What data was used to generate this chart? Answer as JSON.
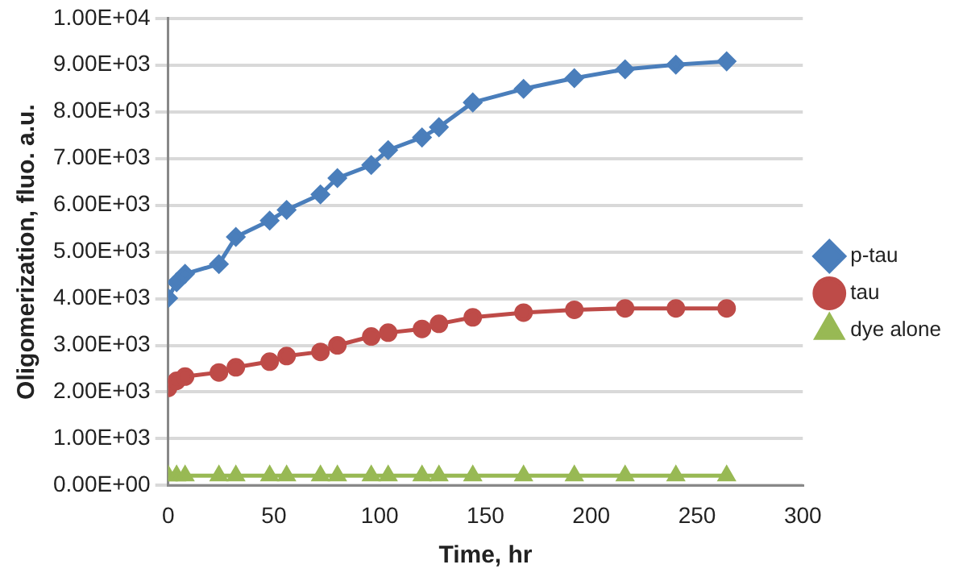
{
  "chart_data": {
    "type": "line",
    "xlabel": "Time, hr",
    "ylabel": "Oligomerization, fluo. a.u.",
    "x": [
      0,
      4,
      8,
      24,
      32,
      48,
      56,
      72,
      80,
      96,
      104,
      120,
      128,
      144,
      168,
      192,
      216,
      240,
      264
    ],
    "series": [
      {
        "name": "p-tau",
        "color": "#4a7ebb",
        "marker": "diamond",
        "values": [
          4010,
          4350,
          4530,
          4740,
          5320,
          5670,
          5900,
          6230,
          6580,
          6860,
          7180,
          7450,
          7670,
          8200,
          8490,
          8720,
          8910,
          9010,
          9080
        ]
      },
      {
        "name": "tau",
        "color": "#be4b48",
        "marker": "circle",
        "values": [
          2090,
          2240,
          2330,
          2420,
          2530,
          2650,
          2770,
          2860,
          3000,
          3190,
          3270,
          3350,
          3460,
          3600,
          3700,
          3760,
          3790,
          3790,
          3790
        ]
      },
      {
        "name": "dye alone",
        "color": "#98b954",
        "marker": "triangle",
        "values": [
          210,
          210,
          210,
          210,
          210,
          210,
          210,
          210,
          210,
          210,
          210,
          210,
          210,
          210,
          210,
          210,
          210,
          210,
          210
        ]
      }
    ],
    "xlim": [
      0,
      300
    ],
    "xticks": [
      0,
      50,
      100,
      150,
      200,
      250,
      300
    ],
    "ylim": [
      0,
      10000
    ],
    "yticks": [
      {
        "value": 0,
        "label": "0.00E+00"
      },
      {
        "value": 1000,
        "label": "1.00E+03"
      },
      {
        "value": 2000,
        "label": "2.00E+03"
      },
      {
        "value": 3000,
        "label": "3.00E+03"
      },
      {
        "value": 4000,
        "label": "4.00E+03"
      },
      {
        "value": 5000,
        "label": "5.00E+03"
      },
      {
        "value": 6000,
        "label": "6.00E+03"
      },
      {
        "value": 7000,
        "label": "7.00E+03"
      },
      {
        "value": 8000,
        "label": "8.00E+03"
      },
      {
        "value": 9000,
        "label": "9.00E+03"
      },
      {
        "value": 10000,
        "label": "1.00E+04"
      }
    ],
    "grid": "y",
    "legend": "right",
    "line_style": "solid"
  }
}
